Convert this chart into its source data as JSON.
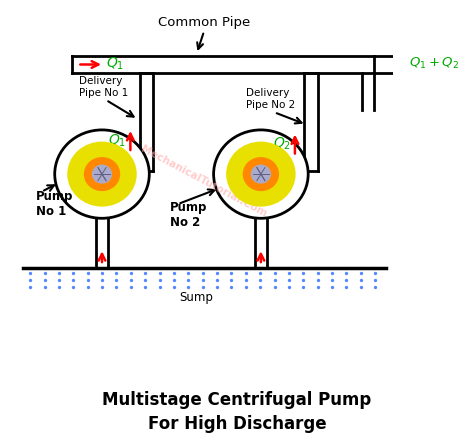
{
  "title_line1": "Multistage Centrifugal Pump",
  "title_line2": "For High Discharge",
  "common_pipe_label": "Common Pipe",
  "sump_label": "Sump",
  "pump1_label": "Pump\nNo 1",
  "pump2_label": "Pump\nNo 2",
  "delivery1_label": "Delivery\nPipe No 1",
  "delivery2_label": "Delivery\nPipe No 2",
  "watermark": "MechanicalTutorial.Com",
  "bg_color": "#ffffff",
  "pump_outer_color": "#000000",
  "pump_yellow_color": "#e8e000",
  "pump_orange_color": "#ff8800",
  "pump_shaft_color": "#aaaacc",
  "pipe_color": "#000000",
  "arrow_red": "#ff0000",
  "arrow_black": "#000000",
  "label_green": "#00aa00",
  "label_black": "#000000",
  "water_color": "#5588ff",
  "sump_line_color": "#000000"
}
